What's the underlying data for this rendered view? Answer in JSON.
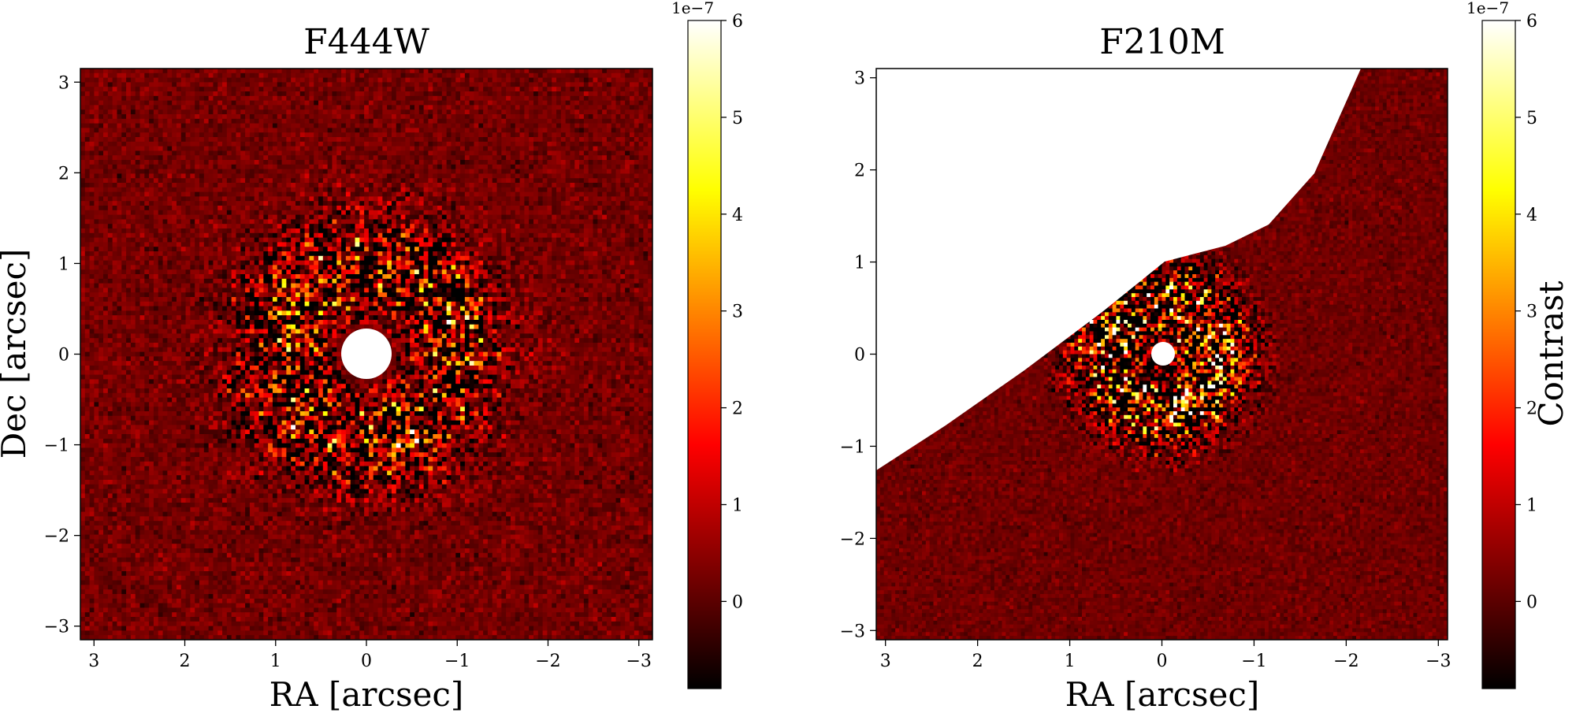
{
  "chart_data": [
    {
      "type": "heatmap",
      "title": "F444W",
      "xlabel": "RA [arcsec]",
      "ylabel": "Dec [arcsec]",
      "x_ticks": [
        3,
        2,
        1,
        0,
        -1,
        -2,
        -3
      ],
      "x_tick_labels": [
        "3",
        "2",
        "1",
        "0",
        "−1",
        "−2",
        "−3"
      ],
      "y_ticks": [
        3,
        2,
        1,
        0,
        -1,
        -2,
        -3
      ],
      "y_tick_labels": [
        "3",
        "2",
        "1",
        "0",
        "−1",
        "−2",
        "−3"
      ],
      "xlim": [
        3.15,
        -3.15
      ],
      "ylim": [
        -3.15,
        3.15
      ],
      "colormap": "hot",
      "masked_center_radius_arcsec": 0.27,
      "colorbar": {
        "label": "",
        "range": [
          -0.9,
          6
        ],
        "ticks": [
          0,
          1,
          2,
          3,
          4,
          5,
          6
        ],
        "tick_labels": [
          "0",
          "1",
          "2",
          "3",
          "4",
          "5",
          "6"
        ],
        "exponent_label": "1e−7"
      }
    },
    {
      "type": "heatmap",
      "title": "F210M",
      "xlabel": "RA [arcsec]",
      "ylabel": "",
      "x_ticks": [
        3,
        2,
        1,
        0,
        -1,
        -2,
        -3
      ],
      "x_tick_labels": [
        "3",
        "2",
        "1",
        "0",
        "−1",
        "−2",
        "−3"
      ],
      "y_ticks": [
        3,
        2,
        1,
        0,
        -1,
        -2,
        -3
      ],
      "y_tick_labels": [
        "3",
        "2",
        "1",
        "0",
        "−1",
        "−2",
        "−3"
      ],
      "xlim": [
        3.1,
        -3.1
      ],
      "ylim": [
        -3.1,
        3.1
      ],
      "colormap": "hot",
      "masked_center_radius_arcsec": 0.13,
      "colorbar": {
        "label": "Contrast",
        "range": [
          -0.9,
          6
        ],
        "ticks": [
          0,
          1,
          2,
          3,
          4,
          5,
          6
        ],
        "tick_labels": [
          "0",
          "1",
          "2",
          "3",
          "4",
          "5",
          "6"
        ],
        "exponent_label": "1e−7"
      }
    }
  ]
}
